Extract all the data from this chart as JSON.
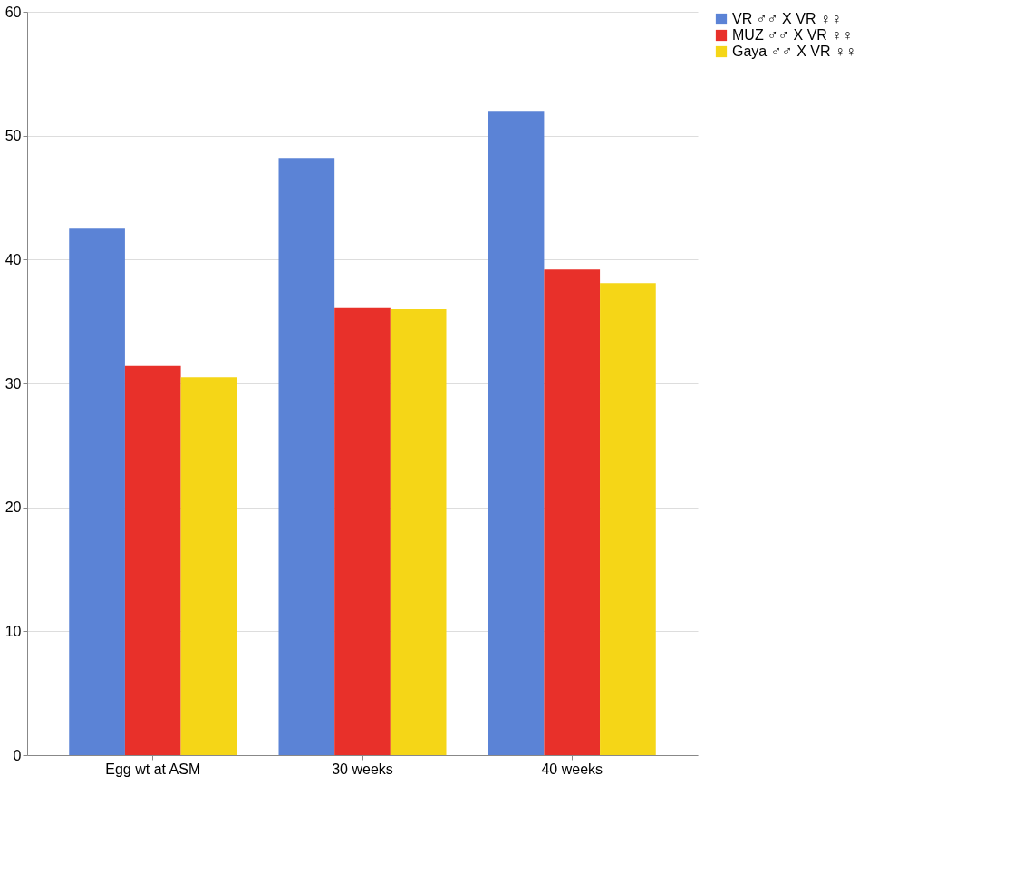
{
  "chart_data": {
    "type": "bar",
    "categories": [
      "Egg wt at ASM",
      "30 weeks",
      "40 weeks"
    ],
    "series": [
      {
        "name": "VR ♂♂ X VR ♀♀",
        "color": "#5b83d6",
        "values": [
          42.5,
          48.2,
          52.0
        ]
      },
      {
        "name": "MUZ ♂♂ X VR ♀♀",
        "color": "#e8302a",
        "values": [
          31.4,
          36.1,
          39.2
        ]
      },
      {
        "name": "Gaya ♂♂ X VR ♀♀",
        "color": "#f5d617",
        "values": [
          30.5,
          36.0,
          38.1
        ]
      }
    ],
    "ylim": [
      0,
      60
    ],
    "yticks": [
      0,
      10,
      20,
      30,
      40,
      50,
      60
    ],
    "grid": "y",
    "legend": "right"
  }
}
